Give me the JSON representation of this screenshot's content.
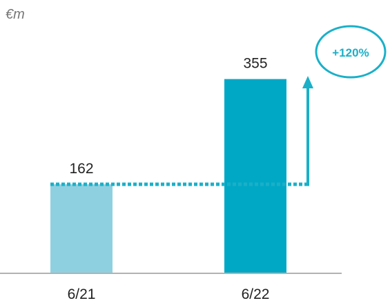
{
  "colors": {
    "bar_2021": "#8fd0e0",
    "bar_2022": "#00a8c6",
    "accent": "#1ab0c8",
    "axis": "#999999",
    "text": "#222222",
    "unit_text": "#777777"
  },
  "chart_data": {
    "type": "bar",
    "unit_label": "€m",
    "categories": [
      "6/21",
      "6/22"
    ],
    "values": [
      162,
      355
    ],
    "data_labels": [
      "162",
      "355"
    ],
    "ylim": [
      0,
      400
    ],
    "grid": false,
    "legend": "none",
    "annotation": {
      "text": "+120%",
      "from_category": "6/21",
      "to_category": "6/22"
    }
  }
}
